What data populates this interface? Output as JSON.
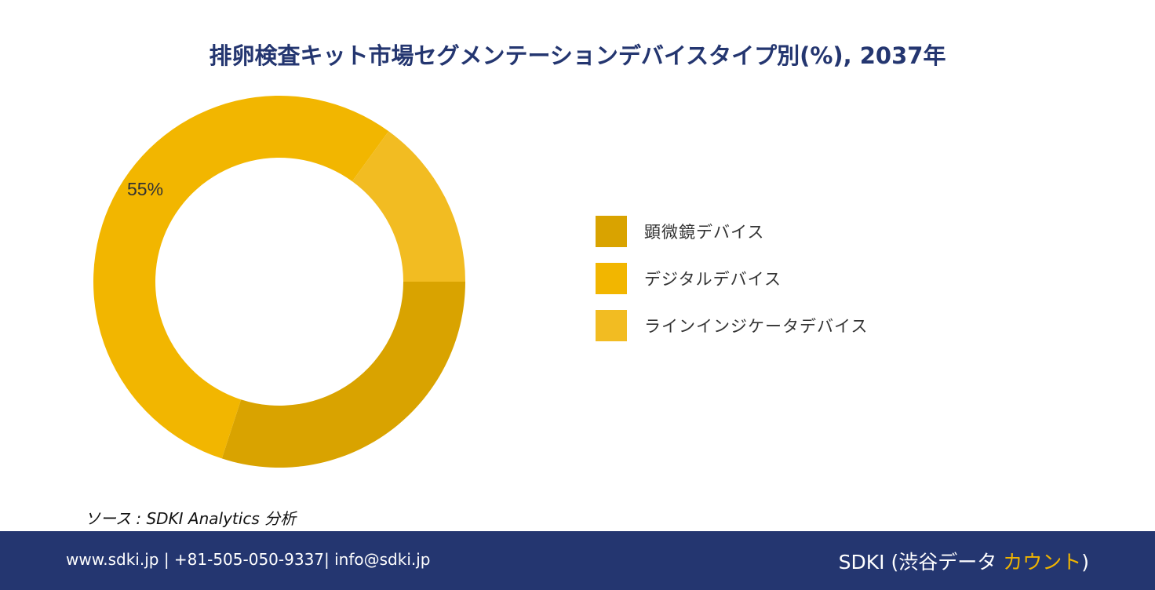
{
  "title": "排卵検査キット市場セグメンテーションデバイスタイプ別(%), 2037年",
  "chart_data": {
    "type": "pie",
    "donut": true,
    "categories": [
      "顕微鏡デバイス",
      "デジタルデバイス",
      "ラインインジケータデバイス"
    ],
    "values": [
      30,
      55,
      15
    ],
    "colors": [
      "#d9a300",
      "#f2b600",
      "#f2bc22"
    ],
    "data_labels": [
      "",
      "55%",
      ""
    ],
    "legend_position": "right"
  },
  "source": "ソース  : SDKI Analytics  分析",
  "footer": {
    "contact": "www.sdki.jp | +81-505-050-9337| info@sdki.jp",
    "brand_prefix": "SDKI (渋谷データ ",
    "brand_accent": "カウント",
    "brand_suffix": ")"
  }
}
